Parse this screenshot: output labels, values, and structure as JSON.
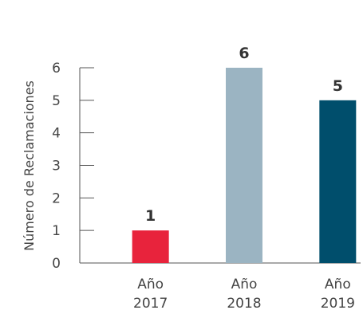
{
  "chart_data": {
    "type": "bar",
    "categories": [
      {
        "line1": "Año",
        "line2": "2017"
      },
      {
        "line1": "Año",
        "line2": "2018"
      },
      {
        "line1": "Año",
        "line2": "2019"
      }
    ],
    "values": [
      1,
      6,
      5
    ],
    "value_labels": [
      "1",
      "6",
      "5"
    ],
    "bar_colors": [
      "#e8233c",
      "#9bb4c2",
      "#004e6c"
    ],
    "ylabel": "Número de Reclamaciones",
    "xlabel": "",
    "ylim": [
      0,
      6
    ],
    "yticks": [
      "0",
      "1",
      "2",
      "3",
      "4",
      "5",
      "6"
    ],
    "grid": false,
    "legend": "none"
  }
}
